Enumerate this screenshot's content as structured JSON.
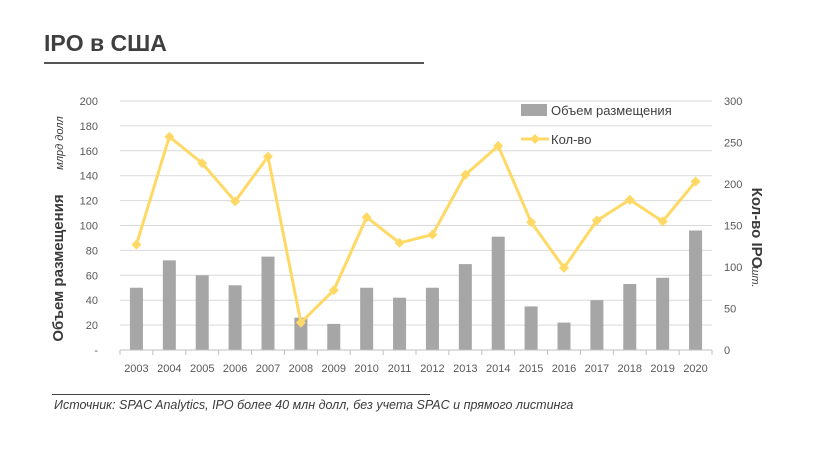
{
  "header": {
    "title": "IPO в США"
  },
  "source": "Источник: SPAC Analytics, IPO более 40 млн долл, без учета SPAC и прямого листинга",
  "colors": {
    "bar": "#a6a6a6",
    "line": "#ffd966",
    "text": "#3f3f3f"
  },
  "chart_data": {
    "type": "bar",
    "categories": [
      "2003",
      "2004",
      "2005",
      "2006",
      "2007",
      "2008",
      "2009",
      "2010",
      "2011",
      "2012",
      "2013",
      "2014",
      "2015",
      "2016",
      "2017",
      "2018",
      "2019",
      "2020"
    ],
    "series": [
      {
        "name": "Объем размещения",
        "type": "bar",
        "axis": "left",
        "values": [
          50,
          72,
          60,
          52,
          75,
          26,
          21,
          50,
          42,
          50,
          69,
          91,
          35,
          22,
          40,
          53,
          58,
          96
        ]
      },
      {
        "name": "Кол-во",
        "type": "line",
        "axis": "right",
        "marker": "diamond",
        "values": [
          127,
          257,
          225,
          179,
          233,
          33,
          72,
          160,
          129,
          139,
          211,
          246,
          154,
          99,
          156,
          181,
          155,
          203
        ]
      }
    ],
    "left_axis": {
      "label": "Объем размещения",
      "unit": "млрд долл",
      "ylim": [
        0,
        200
      ],
      "tick_labels": [
        "-",
        "20",
        "40",
        "60",
        "80",
        "100",
        "120",
        "140",
        "160",
        "180",
        "200"
      ]
    },
    "right_axis": {
      "label": "Кол-во IPO",
      "unit": "шт.",
      "ylim": [
        0,
        300
      ],
      "tick_labels": [
        "0",
        "50",
        "100",
        "150",
        "200",
        "250",
        "300"
      ]
    },
    "legend": {
      "placement": "top-right",
      "entries": [
        "Объем размещения",
        "Кол-во"
      ]
    },
    "grid": true
  }
}
